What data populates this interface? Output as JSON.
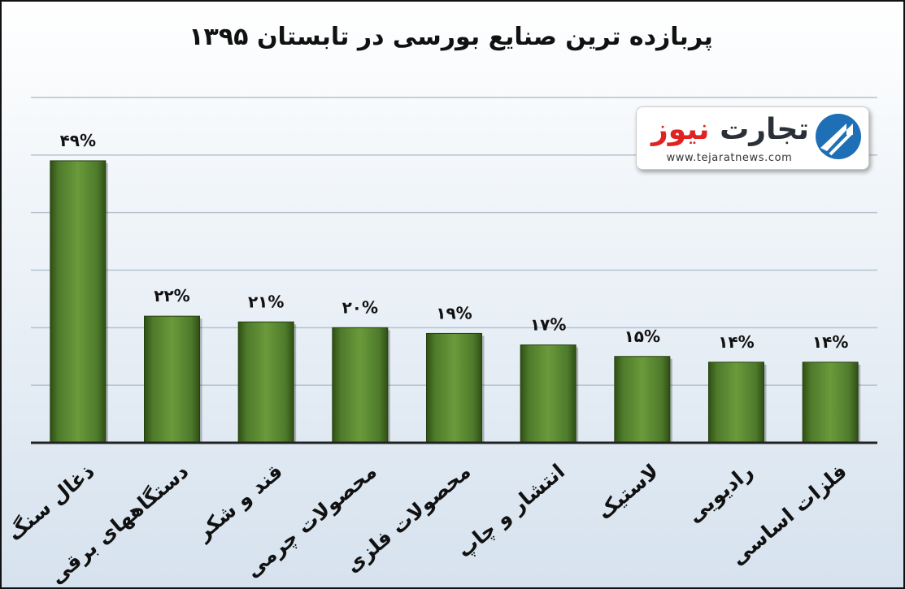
{
  "title": "پربازده ترین صنایع بورسی در  تابستان ۱۳۹۵",
  "logo": {
    "name_part1": "تجارت",
    "name_part2": "نیوز",
    "url": "www.tejaratnews.com",
    "icon": "tejarat-arrow-circle-icon"
  },
  "colors": {
    "bar": "#4e7a2b",
    "bar_dark": "#2f4f15",
    "bar_light": "#6a9a3b",
    "grid": "#b4c2d0",
    "logo_red": "#e02222",
    "logo_dark": "#2b3038"
  },
  "chart_data": {
    "type": "bar",
    "title": "پربازده ترین صنایع بورسی در  تابستان ۱۳۹۵",
    "categories": [
      "ذغال سنگ",
      "دستگاههای برقی",
      "قند و شکر",
      "محصولات چرمی",
      "محصولات فلزی",
      "انتشار و چاپ",
      "لاستیک",
      "رادیویی",
      "فلزات اساسی"
    ],
    "values": [
      49,
      22,
      21,
      20,
      19,
      17,
      15,
      14,
      14
    ],
    "data_labels": [
      "۴۹%",
      "۲۲%",
      "۲۱%",
      "۲۰%",
      "۱۹%",
      "۱۷%",
      "۱۵%",
      "۱۴%",
      "۱۴%"
    ],
    "ylim": [
      0,
      60
    ],
    "grid": true,
    "xlabel": "",
    "ylabel": ""
  }
}
